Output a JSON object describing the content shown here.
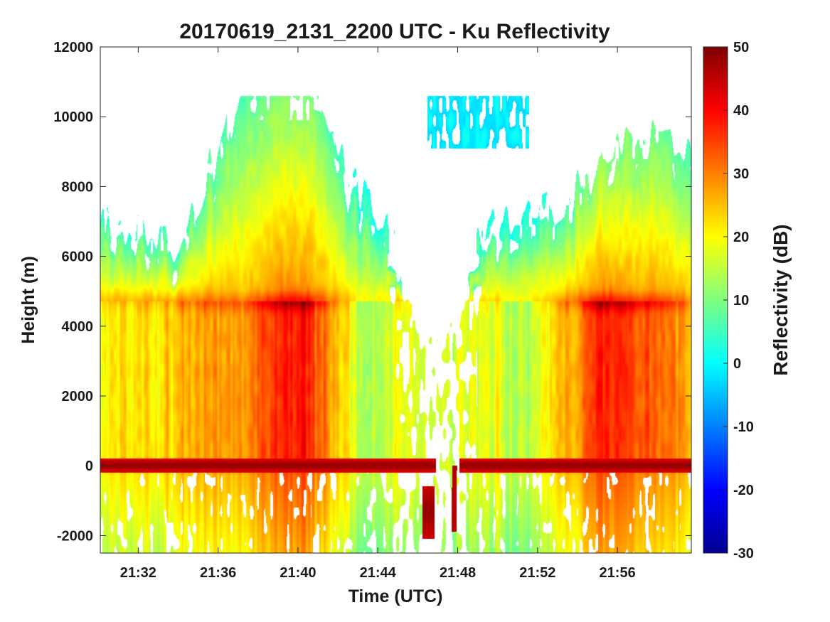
{
  "chart_data": {
    "type": "heatmap",
    "title": "20170619_2131_2200 UTC - Ku Reflectivity",
    "xlabel": "Time (UTC)",
    "ylabel": "Height (m)",
    "colorbar_label": "Reflectivity (dB)",
    "x_ticks": [
      "21:32",
      "21:36",
      "21:40",
      "21:44",
      "21:48",
      "21:52",
      "21:56"
    ],
    "x_tick_minutes": [
      32,
      36,
      40,
      44,
      48,
      52,
      56
    ],
    "xlim_minutes": [
      30.1,
      59.7
    ],
    "y_ticks": [
      12000,
      10000,
      8000,
      6000,
      4000,
      2000,
      0,
      -2000
    ],
    "y_tick_labels": [
      "12000",
      "10000",
      "8000",
      "6000",
      "4000",
      "2000",
      "0",
      "-2000"
    ],
    "ylim": [
      -2500,
      12000
    ],
    "colorbar_ticks": [
      50,
      40,
      30,
      20,
      10,
      0,
      -10,
      -20,
      -30
    ],
    "colorbar_tick_labels": [
      "50",
      "40",
      "30",
      "20",
      "10",
      "0",
      "-10",
      "-20",
      "-30"
    ],
    "clim": [
      -30,
      50
    ],
    "colormap": "jet",
    "grid": false,
    "features": {
      "surface_return_height_m": 0,
      "surface_return_dbz": 48,
      "melting_layer_height_m": 4700,
      "melting_layer_dbz": 36,
      "echo_top_max_m": 10600,
      "no_echo_gap_minutes": [
        44.5,
        49.3
      ],
      "aircraft_turn_minute": 47.5
    }
  }
}
